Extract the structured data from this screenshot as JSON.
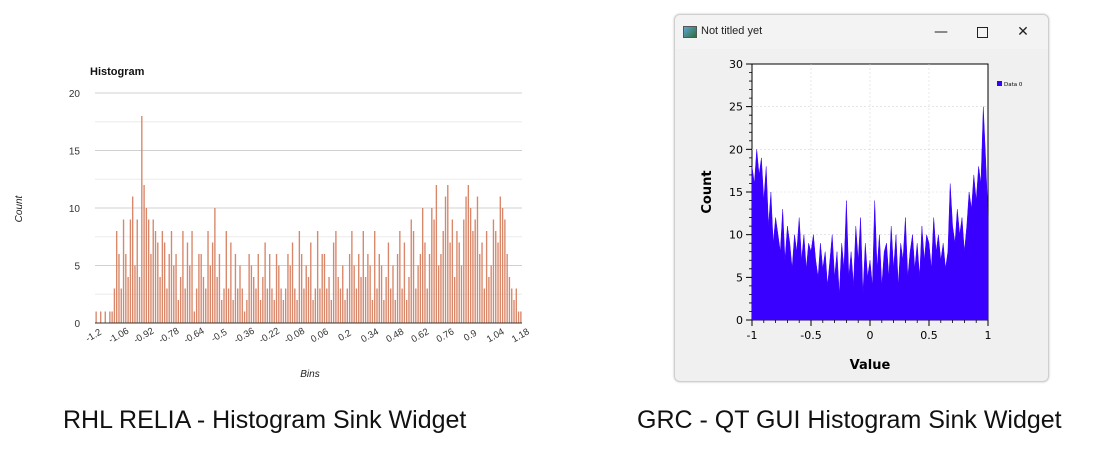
{
  "left_panel": {
    "caption": "RHL RELIA - Histogram Sink Widget",
    "chart_data": {
      "type": "bar",
      "title": "Histogram",
      "xlabel": "Bins",
      "ylabel": "Count",
      "ylim": [
        0,
        20
      ],
      "yticks": [
        "0",
        "5",
        "10",
        "15",
        "20"
      ],
      "xticks": [
        "-1.2",
        "-1.06",
        "-0.92",
        "-0.78",
        "-0.64",
        "-0.5",
        "-0.36",
        "-0.22",
        "-0.08",
        "0.06",
        "0.2",
        "0.34",
        "0.48",
        "0.62",
        "0.76",
        "0.9",
        "1.04",
        "1.18"
      ],
      "xrange": [
        -1.2,
        1.18
      ],
      "grid": true,
      "bar_color": "#d9876a",
      "values": [
        1,
        0,
        1,
        0,
        1,
        0,
        1,
        1,
        3,
        8,
        6,
        3,
        9,
        6,
        4,
        9,
        11,
        5,
        9,
        4,
        18,
        12,
        10,
        9,
        6,
        9,
        8,
        7,
        4,
        8,
        7,
        3,
        6,
        8,
        5,
        6,
        2,
        4,
        8,
        3,
        7,
        5,
        8,
        1,
        3,
        6,
        6,
        4,
        3,
        8,
        5,
        7,
        10,
        4,
        6,
        2,
        3,
        8,
        3,
        7,
        2,
        6,
        3,
        5,
        3,
        1,
        2,
        6,
        5,
        4,
        3,
        6,
        2,
        4,
        7,
        3,
        6,
        3,
        2,
        6,
        5,
        3,
        2,
        3,
        6,
        5,
        7,
        3,
        2,
        8,
        6,
        3,
        5,
        4,
        7,
        2,
        3,
        8,
        3,
        6,
        6,
        3,
        4,
        2,
        7,
        8,
        4,
        3,
        5,
        2,
        3,
        6,
        8,
        5,
        3,
        6,
        4,
        8,
        4,
        6,
        5,
        2,
        8,
        3,
        6,
        5,
        2,
        4,
        7,
        3,
        5,
        2,
        6,
        8,
        3,
        7,
        2,
        4,
        9,
        8,
        3,
        5,
        6,
        10,
        7,
        3,
        6,
        10,
        9,
        12,
        5,
        6,
        8,
        11,
        12,
        7,
        9,
        4,
        8,
        7,
        5,
        9,
        11,
        12,
        10,
        8,
        9,
        11,
        6,
        7,
        3,
        8,
        4,
        5,
        9,
        8,
        7,
        11,
        10,
        9,
        6,
        4,
        3,
        2,
        3,
        1,
        1
      ]
    }
  },
  "right_panel": {
    "caption": "GRC - QT GUI Histogram Sink Widget",
    "window": {
      "title": "Not titled yet",
      "minimize_symbol": "—",
      "close_symbol": "✕"
    },
    "chart_data": {
      "type": "area",
      "xlabel": "Value",
      "ylabel": "Count",
      "xlim": [
        -1,
        1
      ],
      "ylim": [
        0,
        30
      ],
      "xticks": [
        "-1",
        "-0.5",
        "0",
        "0.5",
        "1"
      ],
      "yticks": [
        "0",
        "5",
        "10",
        "15",
        "20",
        "25",
        "30"
      ],
      "grid": true,
      "legend": "top-right",
      "series": [
        {
          "name": "Data 0",
          "color": "#3a00ff",
          "x": [
            -1.0,
            -0.98,
            -0.96,
            -0.94,
            -0.92,
            -0.9,
            -0.88,
            -0.86,
            -0.84,
            -0.82,
            -0.8,
            -0.78,
            -0.76,
            -0.74,
            -0.72,
            -0.7,
            -0.68,
            -0.66,
            -0.64,
            -0.62,
            -0.6,
            -0.58,
            -0.56,
            -0.54,
            -0.52,
            -0.5,
            -0.48,
            -0.46,
            -0.44,
            -0.42,
            -0.4,
            -0.38,
            -0.36,
            -0.34,
            -0.32,
            -0.3,
            -0.28,
            -0.26,
            -0.24,
            -0.22,
            -0.2,
            -0.18,
            -0.16,
            -0.14,
            -0.12,
            -0.1,
            -0.08,
            -0.06,
            -0.04,
            -0.02,
            0.0,
            0.02,
            0.04,
            0.06,
            0.08,
            0.1,
            0.12,
            0.14,
            0.16,
            0.18,
            0.2,
            0.22,
            0.24,
            0.26,
            0.28,
            0.3,
            0.32,
            0.34,
            0.36,
            0.38,
            0.4,
            0.42,
            0.44,
            0.46,
            0.48,
            0.5,
            0.52,
            0.54,
            0.56,
            0.58,
            0.6,
            0.62,
            0.64,
            0.66,
            0.68,
            0.7,
            0.72,
            0.74,
            0.76,
            0.78,
            0.8,
            0.82,
            0.84,
            0.86,
            0.88,
            0.9,
            0.92,
            0.94,
            0.96,
            0.98,
            1.0
          ],
          "y": [
            18,
            16,
            20,
            17,
            19,
            14,
            18,
            11,
            15,
            9,
            12,
            10,
            8,
            13,
            7,
            11,
            9,
            6,
            10,
            8,
            12,
            7,
            10,
            6,
            9,
            8,
            10,
            7,
            5,
            9,
            6,
            8,
            4,
            7,
            10,
            5,
            8,
            3,
            9,
            6,
            14,
            5,
            8,
            4,
            11,
            7,
            12,
            3,
            9,
            5,
            7,
            4,
            14,
            6,
            10,
            4,
            8,
            9,
            5,
            11,
            6,
            10,
            4,
            9,
            7,
            12,
            5,
            8,
            10,
            6,
            9,
            5,
            11,
            7,
            10,
            9,
            6,
            12,
            8,
            10,
            7,
            9,
            6,
            8,
            16,
            11,
            9,
            13,
            10,
            12,
            8,
            11,
            15,
            13,
            17,
            14,
            18,
            16,
            25,
            19,
            12
          ]
        }
      ]
    }
  }
}
